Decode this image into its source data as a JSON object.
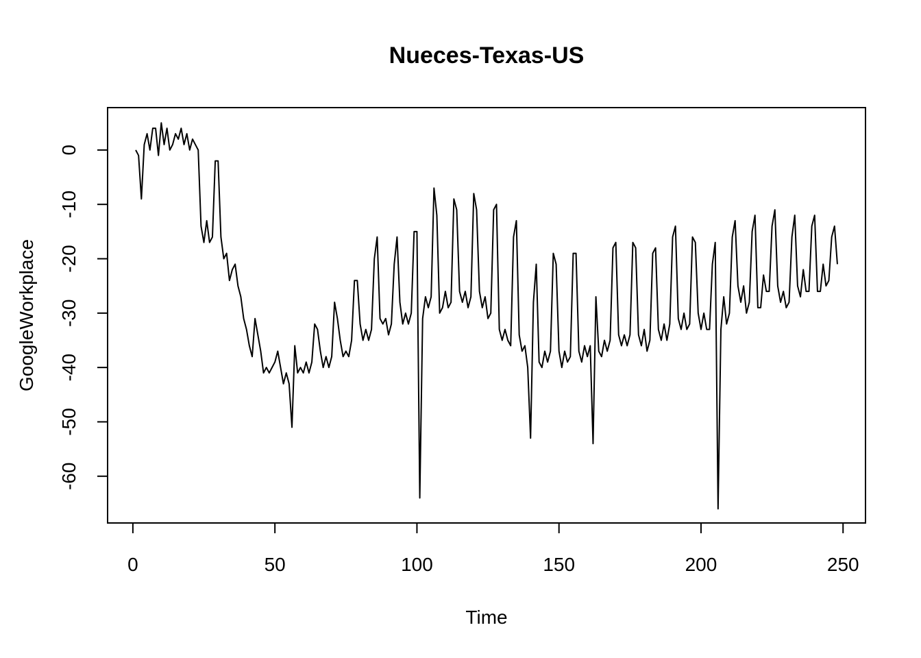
{
  "chart_data": {
    "type": "line",
    "title": "Nueces-Texas-US",
    "xlabel": "Time",
    "ylabel": "GoogleWorkplace",
    "xlim": [
      -8.9,
      257.9
    ],
    "ylim": [
      -68.6,
      7.8
    ],
    "x_ticks": [
      0,
      50,
      100,
      150,
      200,
      250
    ],
    "y_ticks": [
      0,
      -10,
      -20,
      -30,
      -40,
      -50,
      -60
    ],
    "x_tick_labels": [
      "0",
      "50",
      "100",
      "150",
      "200",
      "250"
    ],
    "y_tick_labels": [
      "0",
      "-10",
      "-20",
      "-30",
      "-40",
      "-50",
      "-60"
    ],
    "grid": false,
    "line_color": "#000000",
    "series": [
      {
        "x_start": 1,
        "values": [
          0,
          -1,
          -9,
          1,
          3,
          0,
          4,
          4,
          -1,
          5,
          1,
          4,
          0,
          1,
          3,
          2,
          4,
          1,
          3,
          0,
          2,
          1,
          0,
          -14,
          -17,
          -13,
          -17,
          -16,
          -2,
          -2,
          -16,
          -20,
          -19,
          -24,
          -22,
          -21,
          -25,
          -27,
          -31,
          -33,
          -36,
          -38,
          -31,
          -34,
          -37,
          -41,
          -40,
          -41,
          -40,
          -39,
          -37,
          -40,
          -43,
          -41,
          -43,
          -51,
          -36,
          -41,
          -40,
          -41,
          -39,
          -41,
          -39,
          -32,
          -33,
          -37,
          -40,
          -38,
          -40,
          -38,
          -28,
          -31,
          -35,
          -38,
          -37,
          -38,
          -35,
          -24,
          -24,
          -32,
          -35,
          -33,
          -35,
          -33,
          -20,
          -16,
          -31,
          -32,
          -31,
          -34,
          -32,
          -21,
          -16,
          -28,
          -32,
          -30,
          -32,
          -30,
          -15,
          -15,
          -64,
          -31,
          -27,
          -29,
          -27,
          -7,
          -12,
          -30,
          -29,
          -26,
          -29,
          -28,
          -9,
          -11,
          -26,
          -28,
          -26,
          -29,
          -27,
          -8,
          -11,
          -26,
          -29,
          -27,
          -31,
          -30,
          -11,
          -10,
          -33,
          -35,
          -33,
          -35,
          -36,
          -16,
          -13,
          -34,
          -37,
          -36,
          -40,
          -53,
          -28,
          -21,
          -39,
          -40,
          -37,
          -39,
          -37,
          -19,
          -21,
          -37,
          -40,
          -37,
          -39,
          -38,
          -19,
          -19,
          -37,
          -39,
          -36,
          -38,
          -36,
          -54,
          -27,
          -37,
          -38,
          -35,
          -37,
          -35,
          -18,
          -17,
          -34,
          -36,
          -34,
          -36,
          -34,
          -17,
          -18,
          -34,
          -36,
          -33,
          -37,
          -35,
          -19,
          -18,
          -33,
          -35,
          -32,
          -35,
          -32,
          -16,
          -14,
          -31,
          -33,
          -30,
          -33,
          -32,
          -16,
          -17,
          -30,
          -33,
          -30,
          -33,
          -33,
          -21,
          -17,
          -66,
          -33,
          -27,
          -32,
          -30,
          -16,
          -13,
          -25,
          -28,
          -25,
          -30,
          -28,
          -15,
          -12,
          -29,
          -29,
          -23,
          -26,
          -26,
          -14,
          -11,
          -25,
          -28,
          -26,
          -29,
          -28,
          -16,
          -12,
          -25,
          -27,
          -22,
          -26,
          -26,
          -14,
          -12,
          -26,
          -26,
          -21,
          -25,
          -24,
          -16,
          -14,
          -21
        ]
      }
    ]
  }
}
